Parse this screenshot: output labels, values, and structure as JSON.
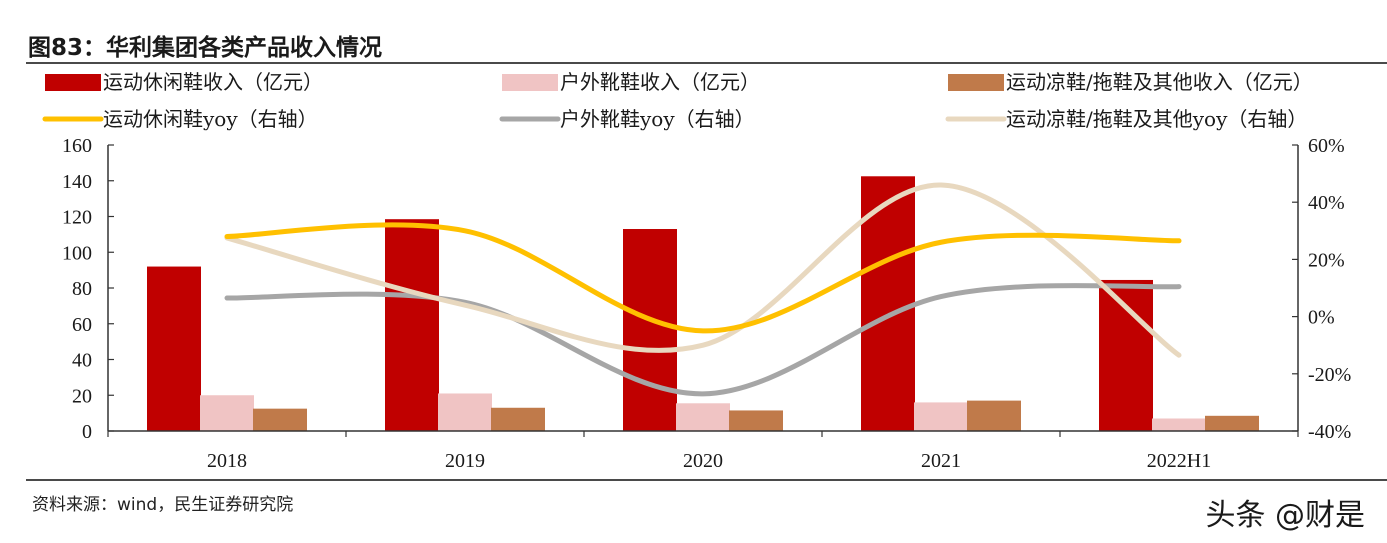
{
  "title": "图83：华利集团各类产品收入情况",
  "source": "资料来源：wind，民生证券研究院",
  "watermark": "头条 @财是",
  "chart_data": {
    "type": "bar",
    "categories": [
      "2018",
      "2019",
      "2020",
      "2021",
      "2022H1"
    ],
    "ylim": [
      0,
      160
    ],
    "yticks": [
      0,
      20,
      40,
      60,
      80,
      100,
      120,
      140,
      160
    ],
    "y2lim": [
      -0.4,
      0.6
    ],
    "y2ticks": [
      -0.4,
      -0.2,
      0.0,
      0.2,
      0.4,
      0.6
    ],
    "y2tick_labels": [
      "-40%",
      "-20%",
      "0%",
      "20%",
      "40%",
      "60%"
    ],
    "legend_placement": "top",
    "grid": false,
    "series": [
      {
        "name": "运动休闲鞋收入（亿元）",
        "kind": "bar",
        "axis": "left",
        "color": "#c00000",
        "values": [
          92,
          118.5,
          113,
          142.5,
          84.5
        ]
      },
      {
        "name": "户外靴鞋收入（亿元）",
        "kind": "bar",
        "axis": "left",
        "color": "#f0c4c4",
        "values": [
          20,
          21,
          15.5,
          16,
          7
        ]
      },
      {
        "name": "运动凉鞋/拖鞋及其他收入（亿元）",
        "kind": "bar",
        "axis": "left",
        "color": "#c07a4a",
        "values": [
          12.5,
          13,
          11.5,
          17,
          8.5
        ]
      },
      {
        "name": "运动休闲鞋yoy（右轴）",
        "kind": "line",
        "axis": "right",
        "color": "#ffc000",
        "values": [
          0.28,
          0.3,
          -0.05,
          0.26,
          0.265
        ]
      },
      {
        "name": "户外靴鞋yoy（右轴）",
        "kind": "line",
        "axis": "right",
        "color": "#a6a6a6",
        "values": [
          0.065,
          0.05,
          -0.27,
          0.07,
          0.105
        ]
      },
      {
        "name": "运动凉鞋/拖鞋及其他yoy（右轴）",
        "kind": "line",
        "axis": "right",
        "color": "#e8d8bf",
        "values": [
          0.275,
          0.04,
          -0.1,
          0.46,
          -0.135
        ]
      }
    ]
  }
}
